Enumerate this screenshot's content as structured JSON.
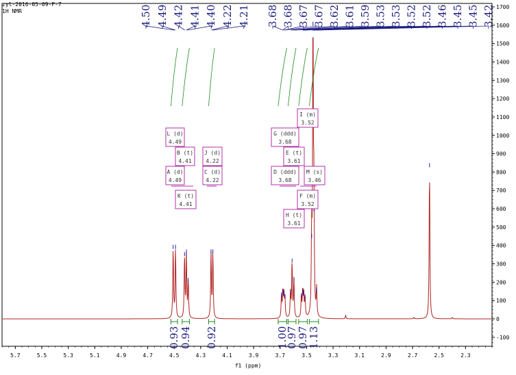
{
  "header": {
    "sample": "zyl-2016-05-09-F-7",
    "experiment": "1H NMR"
  },
  "chart_data": {
    "type": "line",
    "xlabel": "f1 (ppm)",
    "xlim": [
      5.8,
      2.1
    ],
    "ylim": [
      -150,
      1700
    ],
    "x_ticks": [
      5.7,
      5.5,
      5.3,
      5.1,
      4.9,
      4.7,
      4.5,
      4.3,
      4.1,
      3.9,
      3.7,
      3.5,
      3.3,
      3.1,
      2.9,
      2.7,
      2.5,
      2.3
    ],
    "x_tick_labels": [
      "5.7",
      "5.5",
      "5.3",
      "5.1",
      "4.9",
      "4.7",
      "4.5",
      "4.3",
      "4.1",
      "3.9",
      "3.7",
      "3.5",
      "3.3",
      "3.1",
      "2.9",
      "2.7",
      "2.5",
      "2.3"
    ],
    "y_ticks": [
      -100,
      0,
      100,
      200,
      300,
      400,
      500,
      600,
      700,
      800,
      900,
      1000,
      1100,
      1200,
      1300,
      1400,
      1500,
      1600,
      1700
    ],
    "y_tick_labels": [
      "-100",
      "0",
      "100",
      "200",
      "300",
      "400",
      "500",
      "600",
      "700",
      "800",
      "900",
      "1000",
      "1100",
      "1200",
      "1300",
      "1400",
      "1500",
      "1600",
      "1700"
    ],
    "peak_labels": [
      "4.50",
      "4.49",
      "4.42",
      "4.41",
      "4.40",
      "4.22",
      "4.21",
      "3.68",
      "3.68",
      "3.67",
      "3.67",
      "3.62",
      "3.61",
      "3.59",
      "3.53",
      "3.53",
      "3.52",
      "3.52",
      "3.46",
      "3.45",
      "3.45",
      "3.42"
    ],
    "peak_label_positions": [
      4.5,
      4.49,
      4.42,
      4.41,
      4.4,
      4.22,
      4.21,
      3.68,
      3.68,
      3.67,
      3.67,
      3.62,
      3.61,
      3.59,
      3.53,
      3.53,
      3.52,
      3.52,
      3.46,
      3.45,
      3.45,
      3.42
    ],
    "peaks": [
      {
        "x": 4.508,
        "y": 385
      },
      {
        "x": 4.49,
        "y": 385
      },
      {
        "x": 4.422,
        "y": 345
      },
      {
        "x": 4.408,
        "y": 350
      },
      {
        "x": 4.394,
        "y": 205
      },
      {
        "x": 4.222,
        "y": 360
      },
      {
        "x": 4.208,
        "y": 360
      },
      {
        "x": 3.69,
        "y": 125
      },
      {
        "x": 3.68,
        "y": 140
      },
      {
        "x": 3.672,
        "y": 135
      },
      {
        "x": 3.664,
        "y": 115
      },
      {
        "x": 3.622,
        "y": 140
      },
      {
        "x": 3.61,
        "y": 310
      },
      {
        "x": 3.596,
        "y": 210
      },
      {
        "x": 3.54,
        "y": 120
      },
      {
        "x": 3.53,
        "y": 140
      },
      {
        "x": 3.522,
        "y": 135
      },
      {
        "x": 3.512,
        "y": 110
      },
      {
        "x": 3.462,
        "y": 445
      },
      {
        "x": 3.452,
        "y": 1600
      },
      {
        "x": 3.445,
        "y": 590
      },
      {
        "x": 3.425,
        "y": 150
      },
      {
        "x": 3.205,
        "y": 18
      },
      {
        "x": 2.572,
        "y": 830
      },
      {
        "x": 2.69,
        "y": 8
      },
      {
        "x": 2.4,
        "y": 8
      }
    ],
    "integrals": [
      {
        "from": 4.525,
        "to": 4.475,
        "value": "0.93"
      },
      {
        "from": 4.44,
        "to": 4.385,
        "value": "0.94"
      },
      {
        "from": 4.24,
        "to": 4.195,
        "value": "0.92"
      },
      {
        "from": 3.715,
        "to": 3.65,
        "value": "1.00"
      },
      {
        "from": 3.64,
        "to": 3.58,
        "value": "0.97"
      },
      {
        "from": 3.56,
        "to": 3.495,
        "value": "0.97"
      },
      {
        "from": 3.48,
        "to": 3.41,
        "value": "1.13"
      }
    ],
    "multiplets": [
      {
        "label": "L (d)",
        "shift": "4.49",
        "x": 4.5
      },
      {
        "label": "B (t)",
        "shift": "4.41",
        "x": 4.41
      },
      {
        "label": "J (d)",
        "shift": "4.22",
        "x": 4.215
      },
      {
        "label": "A (d)",
        "shift": "4.49",
        "x": 4.5
      },
      {
        "label": "C (d)",
        "shift": "4.22",
        "x": 4.215
      },
      {
        "label": "K (t)",
        "shift": "4.41",
        "x": 4.41
      },
      {
        "label": "G (ddd)",
        "shift": "3.68",
        "x": 3.68
      },
      {
        "label": "E (t)",
        "shift": "3.61",
        "x": 3.61
      },
      {
        "label": "I (m)",
        "shift": "3.52",
        "x": 3.52
      },
      {
        "label": "D (ddd)",
        "shift": "3.68",
        "x": 3.68
      },
      {
        "label": "M (s)",
        "shift": "3.46",
        "x": 3.46
      },
      {
        "label": "F (m)",
        "shift": "3.52",
        "x": 3.52
      },
      {
        "label": "H (t)",
        "shift": "3.61",
        "x": 3.61
      }
    ],
    "colors": {
      "spectrum": "#b02020",
      "peak_tip": "#1c1ca8",
      "integral": "#1f8a1f",
      "label": "#1c1c80",
      "box": "#b12fa7",
      "axis": "#000000"
    }
  }
}
